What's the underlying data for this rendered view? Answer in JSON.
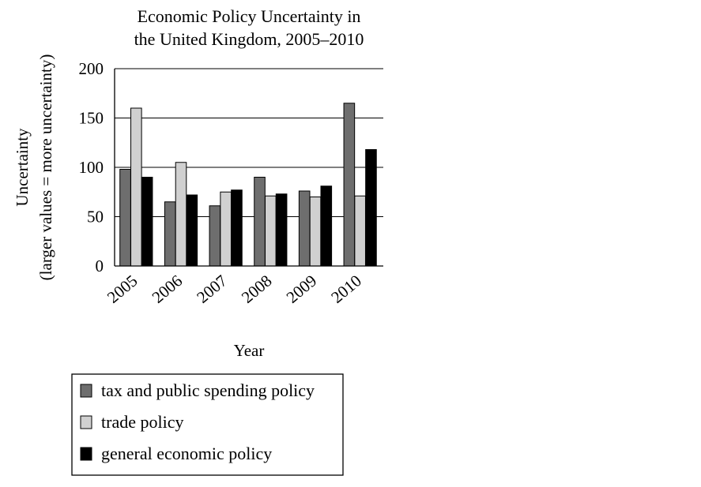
{
  "chart_data": {
    "type": "bar",
    "title": [
      "Economic Policy Uncertainty in",
      "the United Kingdom, 2005–2010"
    ],
    "xlabel": "Year",
    "ylabel": [
      "Uncertainty",
      "(larger values = more uncertainty)"
    ],
    "categories": [
      "2005",
      "2006",
      "2007",
      "2008",
      "2009",
      "2010"
    ],
    "ylim": [
      0,
      200
    ],
    "yticks": [
      0,
      50,
      100,
      150,
      200
    ],
    "grid": true,
    "legend_position": "bottom",
    "series": [
      {
        "name": "tax and public spending policy",
        "color": "#6e6e6e",
        "values": [
          98,
          65,
          61,
          90,
          76,
          165
        ]
      },
      {
        "name": "trade policy",
        "color": "#d0d0d0",
        "values": [
          160,
          105,
          75,
          71,
          70,
          71
        ]
      },
      {
        "name": "general economic policy",
        "color": "#000000",
        "values": [
          90,
          72,
          77,
          73,
          81,
          118
        ]
      }
    ]
  }
}
